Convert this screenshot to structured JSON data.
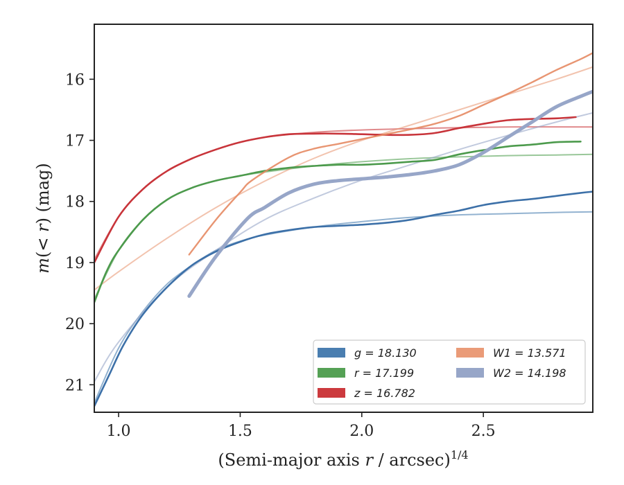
{
  "chart_data": {
    "type": "line",
    "title": "",
    "xlabel": "(Semi-major axis r / arcsec)^{1/4}",
    "ylabel": "m(< r) (mag)",
    "xlim": [
      0.9,
      2.95
    ],
    "ylim": [
      21.45,
      15.1
    ],
    "y_inverted": true,
    "grid": false,
    "legend_position": "lower-right",
    "x_ticks": [
      1.0,
      1.5,
      2.0,
      2.5
    ],
    "x_tick_labels": [
      "1.0",
      "1.5",
      "2.0",
      "2.5"
    ],
    "y_ticks": [
      16,
      17,
      18,
      19,
      20,
      21
    ],
    "y_tick_labels": [
      "16",
      "17",
      "18",
      "19",
      "20",
      "21"
    ],
    "legend": [
      {
        "label": "g = 18.130",
        "color": "#4a7eb0"
      },
      {
        "label": "r = 17.199",
        "color": "#55a155"
      },
      {
        "label": "z = 16.782",
        "color": "#cc3a3e"
      },
      {
        "label": "W1 = 13.571",
        "color": "#ea9b78"
      },
      {
        "label": "W2 = 14.198",
        "color": "#97a6c8"
      }
    ],
    "series": [
      {
        "name": "g = 18.130",
        "kind": "data",
        "color": "#3c70a8",
        "width": 2.6,
        "opacity": 1,
        "x": [
          0.9,
          0.96,
          1.02,
          1.1,
          1.2,
          1.3,
          1.4,
          1.5,
          1.6,
          1.7,
          1.8,
          1.9,
          2.0,
          2.1,
          2.2,
          2.3,
          2.4,
          2.5,
          2.6,
          2.7,
          2.8,
          2.9,
          2.95
        ],
        "y": [
          21.35,
          20.85,
          20.35,
          19.85,
          19.4,
          19.05,
          18.82,
          18.66,
          18.54,
          18.47,
          18.42,
          18.4,
          18.38,
          18.35,
          18.3,
          18.22,
          18.15,
          18.06,
          18.0,
          17.96,
          17.91,
          17.86,
          17.84
        ]
      },
      {
        "name": "g = 18.130 model",
        "kind": "model",
        "color": "#4a7eb0",
        "width": 2,
        "opacity": 0.6,
        "x": [
          0.9,
          1.0,
          1.1,
          1.2,
          1.3,
          1.4,
          1.5,
          1.6,
          1.8,
          2.0,
          2.2,
          2.4,
          2.6,
          2.8,
          2.95
        ],
        "y": [
          21.3,
          20.4,
          19.8,
          19.35,
          19.05,
          18.8,
          18.65,
          18.55,
          18.42,
          18.33,
          18.26,
          18.22,
          18.2,
          18.18,
          18.17
        ]
      },
      {
        "name": "r = 17.199",
        "kind": "data",
        "color": "#4c9a4c",
        "width": 2.6,
        "opacity": 1,
        "x": [
          0.9,
          0.95,
          1.0,
          1.1,
          1.2,
          1.3,
          1.4,
          1.5,
          1.6,
          1.7,
          1.8,
          1.9,
          2.0,
          2.1,
          2.2,
          2.3,
          2.4,
          2.5,
          2.6,
          2.7,
          2.8,
          2.9
        ],
        "y": [
          19.65,
          19.15,
          18.8,
          18.3,
          17.97,
          17.78,
          17.66,
          17.58,
          17.5,
          17.45,
          17.42,
          17.4,
          17.4,
          17.38,
          17.35,
          17.32,
          17.23,
          17.16,
          17.1,
          17.07,
          17.03,
          17.02
        ]
      },
      {
        "name": "r = 17.199 model",
        "kind": "model",
        "color": "#55a155",
        "width": 2,
        "opacity": 0.6,
        "x": [
          0.9,
          1.0,
          1.1,
          1.2,
          1.3,
          1.4,
          1.5,
          1.6,
          1.8,
          2.0,
          2.2,
          2.4,
          2.6,
          2.8,
          2.95
        ],
        "y": [
          19.6,
          18.8,
          18.3,
          17.97,
          17.78,
          17.66,
          17.58,
          17.52,
          17.42,
          17.35,
          17.3,
          17.27,
          17.25,
          17.24,
          17.23
        ]
      },
      {
        "name": "z = 16.782",
        "kind": "data",
        "color": "#c8343a",
        "width": 2.6,
        "opacity": 1,
        "x": [
          0.9,
          1.0,
          1.1,
          1.2,
          1.3,
          1.4,
          1.5,
          1.6,
          1.7,
          1.8,
          1.9,
          2.0,
          2.1,
          2.2,
          2.3,
          2.4,
          2.5,
          2.6,
          2.7,
          2.8,
          2.88
        ],
        "y": [
          19.0,
          18.25,
          17.8,
          17.5,
          17.3,
          17.15,
          17.03,
          16.95,
          16.9,
          16.89,
          16.89,
          16.9,
          16.91,
          16.91,
          16.88,
          16.8,
          16.73,
          16.67,
          16.65,
          16.64,
          16.62
        ]
      },
      {
        "name": "z = 16.782 model",
        "kind": "model",
        "color": "#cc3a3e",
        "width": 2,
        "opacity": 0.6,
        "x": [
          0.9,
          1.0,
          1.1,
          1.2,
          1.3,
          1.4,
          1.5,
          1.6,
          1.8,
          2.0,
          2.3,
          2.6,
          2.95
        ],
        "y": [
          18.95,
          18.25,
          17.8,
          17.5,
          17.3,
          17.15,
          17.03,
          16.95,
          16.87,
          16.83,
          16.8,
          16.78,
          16.78
        ]
      },
      {
        "name": "W1 = 13.571",
        "kind": "data",
        "color": "#e58a63",
        "width": 2.4,
        "opacity": 0.9,
        "x": [
          1.29,
          1.4,
          1.5,
          1.55,
          1.7,
          1.8,
          1.9,
          2.0,
          2.1,
          2.2,
          2.3,
          2.4,
          2.5,
          2.6,
          2.7,
          2.8,
          2.9,
          2.95
        ],
        "y": [
          18.87,
          18.3,
          17.85,
          17.65,
          17.28,
          17.14,
          17.06,
          16.98,
          16.9,
          16.82,
          16.73,
          16.6,
          16.42,
          16.24,
          16.05,
          15.85,
          15.67,
          15.57
        ]
      },
      {
        "name": "W1 = 13.571 model",
        "kind": "model",
        "color": "#ea9b78",
        "width": 2,
        "opacity": 0.6,
        "x": [
          0.9,
          1.0,
          1.2,
          1.4,
          1.6,
          1.8,
          2.0,
          2.2,
          2.4,
          2.6,
          2.8,
          2.95
        ],
        "y": [
          19.45,
          19.15,
          18.6,
          18.1,
          17.67,
          17.3,
          17.0,
          16.75,
          16.5,
          16.25,
          16.0,
          15.8
        ]
      },
      {
        "name": "W2 = 14.198",
        "kind": "data",
        "color": "#97a6c8",
        "width": 5,
        "opacity": 1,
        "x": [
          1.29,
          1.4,
          1.53,
          1.6,
          1.7,
          1.8,
          1.9,
          2.0,
          2.1,
          2.2,
          2.3,
          2.4,
          2.5,
          2.6,
          2.7,
          2.8,
          2.9,
          2.95
        ],
        "y": [
          19.55,
          18.9,
          18.28,
          18.1,
          17.86,
          17.72,
          17.66,
          17.63,
          17.6,
          17.56,
          17.5,
          17.4,
          17.2,
          16.95,
          16.7,
          16.45,
          16.28,
          16.2
        ]
      },
      {
        "name": "W2 = 14.198 model",
        "kind": "model",
        "color": "#97a6c8",
        "width": 2,
        "opacity": 0.6,
        "x": [
          0.9,
          1.0,
          1.2,
          1.4,
          1.6,
          1.8,
          2.0,
          2.2,
          2.4,
          2.6,
          2.8,
          2.95
        ],
        "y": [
          20.95,
          20.3,
          19.4,
          18.8,
          18.3,
          17.95,
          17.65,
          17.4,
          17.15,
          16.92,
          16.7,
          16.55
        ]
      }
    ]
  }
}
